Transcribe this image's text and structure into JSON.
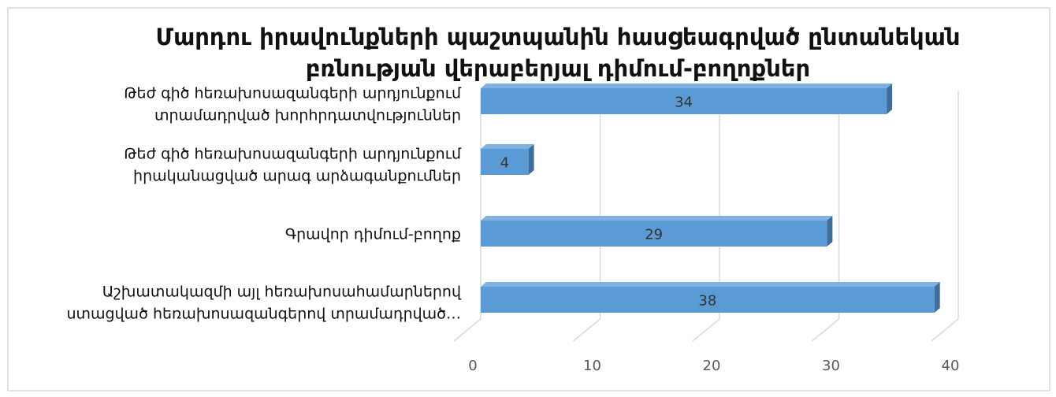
{
  "chart_data": {
    "type": "bar",
    "orientation": "horizontal",
    "three_d": true,
    "title": "Մարդու իրավունքների պաշտպանին հասցեագրված ընտանեկան բռնության վերաբերյալ դիմում-բողոքներ",
    "title_lines": [
      "Մարդու իրավունքների պաշտպանին հասցեագրված ընտանեկան",
      "բռնության վերաբերյալ դիմում-բողոքներ"
    ],
    "categories": [
      {
        "lines": [
          "Թեժ գիծ հեռախոսազանգերի արդյունքում",
          "տրամադրված խորհրդատվություններ"
        ],
        "value": 34
      },
      {
        "lines": [
          "Թեժ գիծ հեռախոսազանգերի արդյունքում",
          "իրականացված արագ արձագանքումներ"
        ],
        "value": 4
      },
      {
        "lines": [
          "Գրավոր դիմում-բողոք"
        ],
        "value": 29
      },
      {
        "lines": [
          "Աշխատակազմի այլ հեռախոսահամարներով",
          "ստացված հեռախոսազանգերով տրամադրված…"
        ],
        "value": 38
      }
    ],
    "xlim": [
      0,
      40
    ],
    "x_ticks": [
      0,
      10,
      20,
      30,
      40
    ],
    "grid": true,
    "legend": "none",
    "colors": {
      "bar_front": "#5b9bd5",
      "bar_top": "#7fb2e0",
      "bar_side": "#3c6e9e",
      "grid": "#d9d9d9",
      "border": "#d9d9d9"
    }
  }
}
